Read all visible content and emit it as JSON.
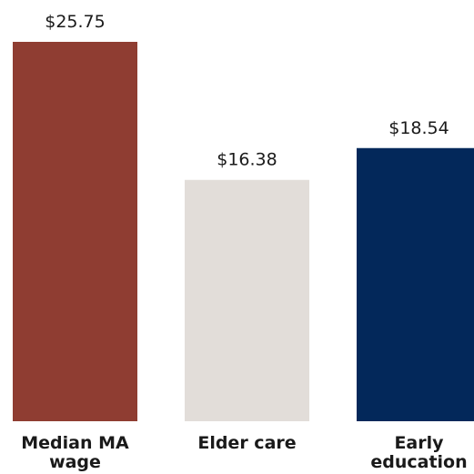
{
  "chart_data": {
    "type": "bar",
    "categories": [
      "Median MA wage",
      "Elder care",
      "Early education"
    ],
    "category_lines": [
      [
        "Median MA",
        "wage"
      ],
      [
        "Elder care"
      ],
      [
        "Early",
        "education"
      ]
    ],
    "values": [
      25.75,
      16.38,
      18.54
    ],
    "value_labels": [
      "$25.75",
      "$16.38",
      "$18.54"
    ],
    "bar_colors": [
      "#8f3d32",
      "#e2ddd9",
      "#03285a"
    ],
    "title": "",
    "xlabel": "",
    "ylabel": "",
    "ylim": [
      0,
      25.75
    ],
    "grid": false,
    "legend": "none"
  }
}
